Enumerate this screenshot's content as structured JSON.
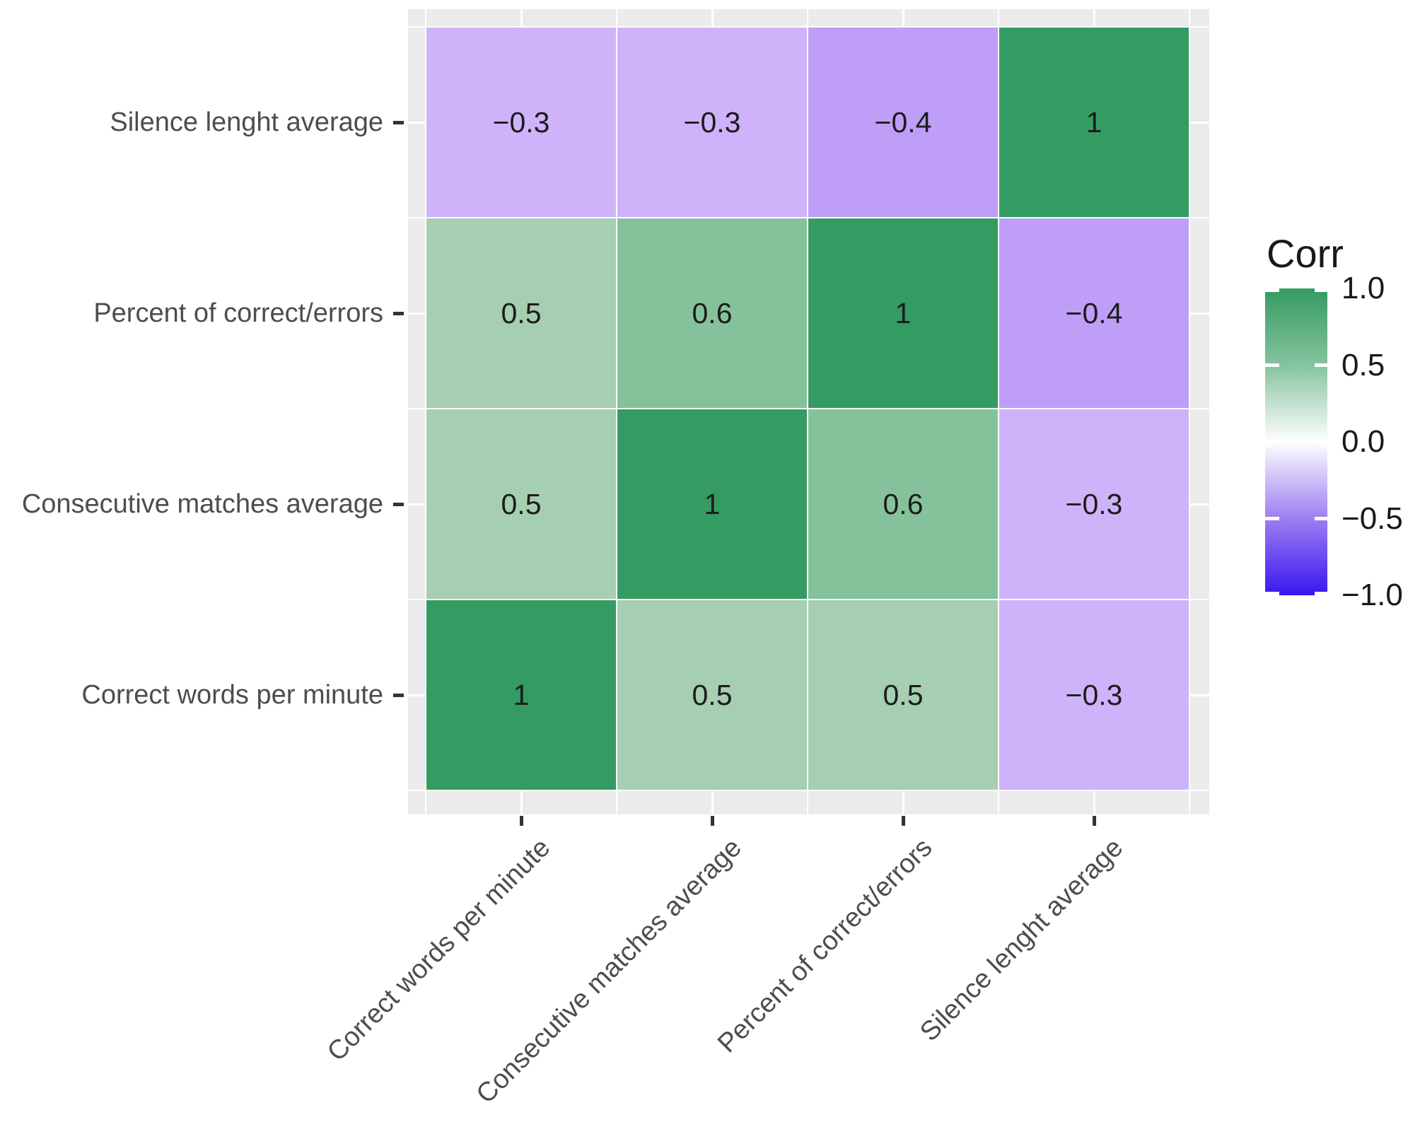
{
  "chart_data": {
    "type": "heatmap",
    "description": "Correlation matrix heatmap (ggplot2 style), 4x4 tiles with value labels",
    "x_categories": [
      "Correct words per minute",
      "Consecutive matches average",
      "Percent of correct/errors",
      "Silence lenght average"
    ],
    "y_categories_top_to_bottom": [
      "Silence lenght average",
      "Percent of correct/errors",
      "Consecutive matches average",
      "Correct words per minute"
    ],
    "matrix_rows_top_to_bottom": [
      [
        -0.3,
        -0.3,
        -0.4,
        1
      ],
      [
        0.5,
        0.6,
        1,
        -0.4
      ],
      [
        0.5,
        1,
        0.6,
        -0.3
      ],
      [
        1,
        0.5,
        0.5,
        -0.3
      ]
    ],
    "cell_display_labels": [
      [
        "−0.3",
        "−0.3",
        "−0.4",
        "1"
      ],
      [
        "0.5",
        "0.6",
        "1",
        "−0.4"
      ],
      [
        "0.5",
        "1",
        "0.6",
        "−0.3"
      ],
      [
        "1",
        "0.5",
        "0.5",
        "−0.3"
      ]
    ],
    "legend": {
      "title": "Corr",
      "ticks": [
        {
          "label": "1.0",
          "pos": 0
        },
        {
          "label": "0.5",
          "pos": 0.25
        },
        {
          "label": "0.0",
          "pos": 0.5
        },
        {
          "label": "−0.5",
          "pos": 0.75
        },
        {
          "label": "−1.0",
          "pos": 1
        }
      ],
      "range": [
        -1.0,
        1.0
      ],
      "gradient_stops": [
        {
          "pct": 0,
          "color": "#349B62"
        },
        {
          "pct": 25,
          "color": "#86C39E"
        },
        {
          "pct": 50,
          "color": "#FFFFFF"
        },
        {
          "pct": 75,
          "color": "#9C7EF1"
        },
        {
          "pct": 100,
          "color": "#3A16EE"
        }
      ]
    },
    "value_colors": {
      "1": "#349B62",
      "0.6": "#85C29C",
      "0.5": "#A6CEB1",
      "−0.3": "#CFB3FA",
      "−0.4": "#BF9EF8"
    },
    "style": {
      "panel_background": "#EBEBEB",
      "gridline_color": "#FFFFFF",
      "axis_text_color": "#4D4D4D",
      "tick_color": "#333333",
      "cell_text_color": "#1C1C1C",
      "legend_text_color": "#191919"
    },
    "grid": "on",
    "legend_position": "right",
    "title": "",
    "xlabel": "",
    "ylabel": ""
  }
}
